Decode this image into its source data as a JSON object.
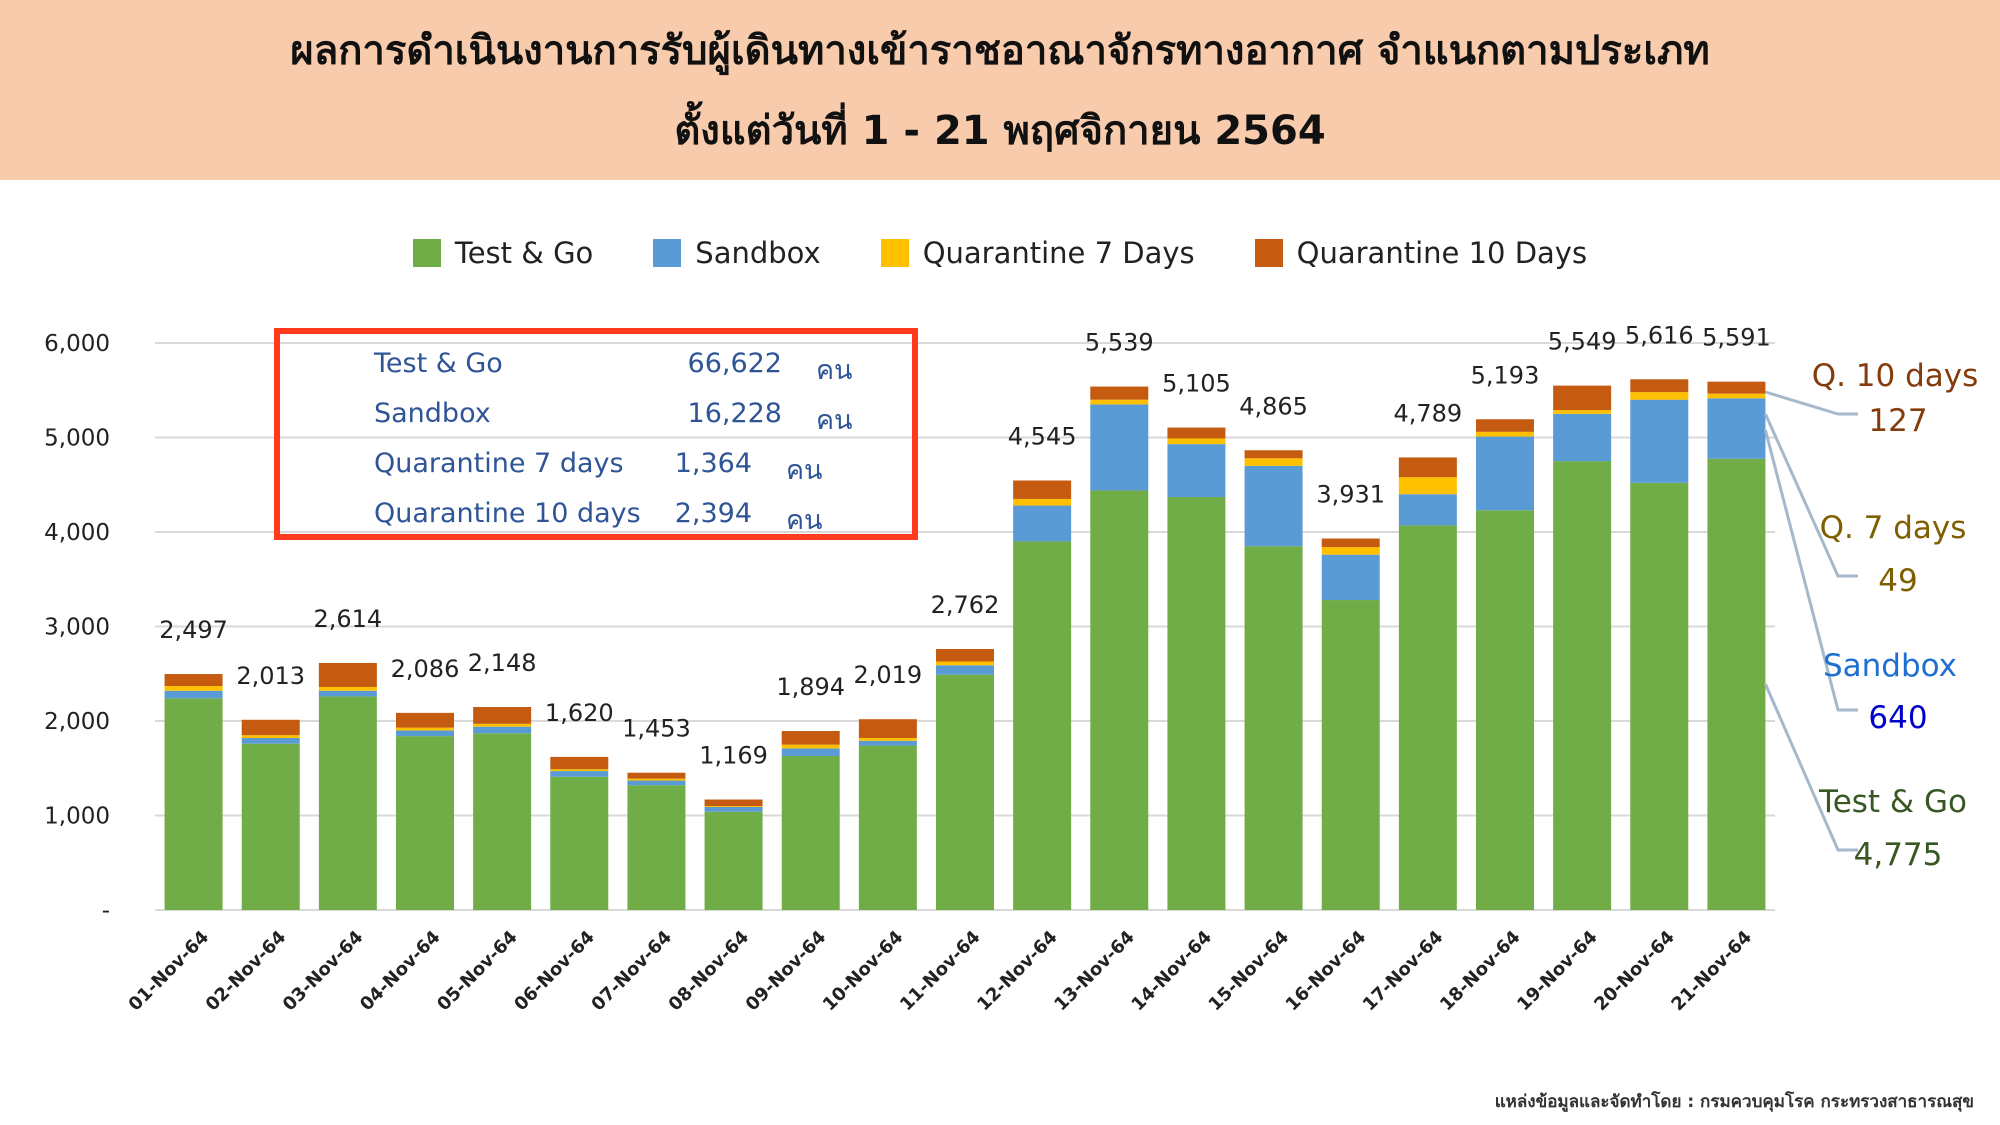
{
  "header": {
    "title_line1": "ผลการดำเนินงานการรับผู้เดินทางเข้าราชอาณาจักรทางอากาศ จำแนกตามประเภท",
    "title_line2": "ตั้งแต่วันที่  1 - 21  พฤศจิกายน 2564"
  },
  "colors": {
    "test_go": "#70ad47",
    "sandbox": "#5b9bd5",
    "q7": "#ffc000",
    "q10": "#c55a11",
    "header_bg": "#f8cbad",
    "box_border": "#ff3b1f"
  },
  "summary": {
    "unit": "คน",
    "rows": [
      {
        "label": "Test & Go",
        "value": "66,622"
      },
      {
        "label": "Sandbox",
        "value": "16,228"
      },
      {
        "label": "Quarantine 7 days",
        "value": "1,364"
      },
      {
        "label": "Quarantine 10 days",
        "value": "2,394"
      }
    ]
  },
  "right_labels": {
    "q10_label": "Q. 10 days",
    "q10_value": "127",
    "q7_label": "Q. 7 days",
    "q7_value": "49",
    "sandbox_label": "Sandbox",
    "sandbox_value": "640",
    "testgo_label": "Test & Go",
    "testgo_value": "4,775"
  },
  "source": "แหล่งข้อมูลและจัดทำโดย : กรมควบคุมโรค กระทรวงสาธารณสุข",
  "chart_data": {
    "type": "bar",
    "stacked": true,
    "categories": [
      "01-Nov-64",
      "02-Nov-64",
      "03-Nov-64",
      "04-Nov-64",
      "05-Nov-64",
      "06-Nov-64",
      "07-Nov-64",
      "08-Nov-64",
      "09-Nov-64",
      "10-Nov-64",
      "11-Nov-64",
      "12-Nov-64",
      "13-Nov-64",
      "14-Nov-64",
      "15-Nov-64",
      "16-Nov-64",
      "17-Nov-64",
      "18-Nov-64",
      "19-Nov-64",
      "20-Nov-64",
      "21-Nov-64"
    ],
    "series": [
      {
        "name": "Test & Go",
        "values": [
          2240,
          1760,
          2260,
          1840,
          1870,
          1410,
          1320,
          1040,
          1630,
          1740,
          2490,
          3900,
          4440,
          4370,
          3850,
          3280,
          4070,
          4230,
          4750,
          4520,
          4775
        ]
      },
      {
        "name": "Sandbox",
        "values": [
          80,
          60,
          60,
          60,
          70,
          60,
          50,
          50,
          80,
          50,
          100,
          380,
          910,
          560,
          850,
          480,
          330,
          780,
          500,
          880,
          640
        ]
      },
      {
        "name": "Quarantine 7 Days",
        "values": [
          50,
          30,
          40,
          30,
          30,
          20,
          20,
          10,
          40,
          30,
          40,
          70,
          50,
          60,
          80,
          80,
          180,
          50,
          40,
          80,
          49
        ]
      },
      {
        "name": "Quarantine 10 Days",
        "values": [
          127,
          163,
          254,
          156,
          178,
          130,
          63,
          69,
          144,
          199,
          132,
          195,
          139,
          115,
          85,
          91,
          209,
          133,
          259,
          136,
          127
        ]
      }
    ],
    "totals": [
      "2,497",
      "2,013",
      "2,614",
      "2,086",
      "2,148",
      "1,620",
      "1,453",
      "1,169",
      "1,894",
      "2,019",
      "2,762",
      "4,545",
      "5,539",
      "5,105",
      "4,865",
      "3,931",
      "4,789",
      "5,193",
      "5,549",
      "5,616",
      "5,591"
    ],
    "legend": [
      "Test & Go",
      "Sandbox",
      "Quarantine 7 Days",
      "Quarantine 10 Days"
    ],
    "legend_position": "top",
    "y_ticks": [
      "-",
      "1,000",
      "2,000",
      "3,000",
      "4,000",
      "5,000",
      "6,000"
    ],
    "ylim": [
      0,
      6000
    ],
    "grid": true
  }
}
